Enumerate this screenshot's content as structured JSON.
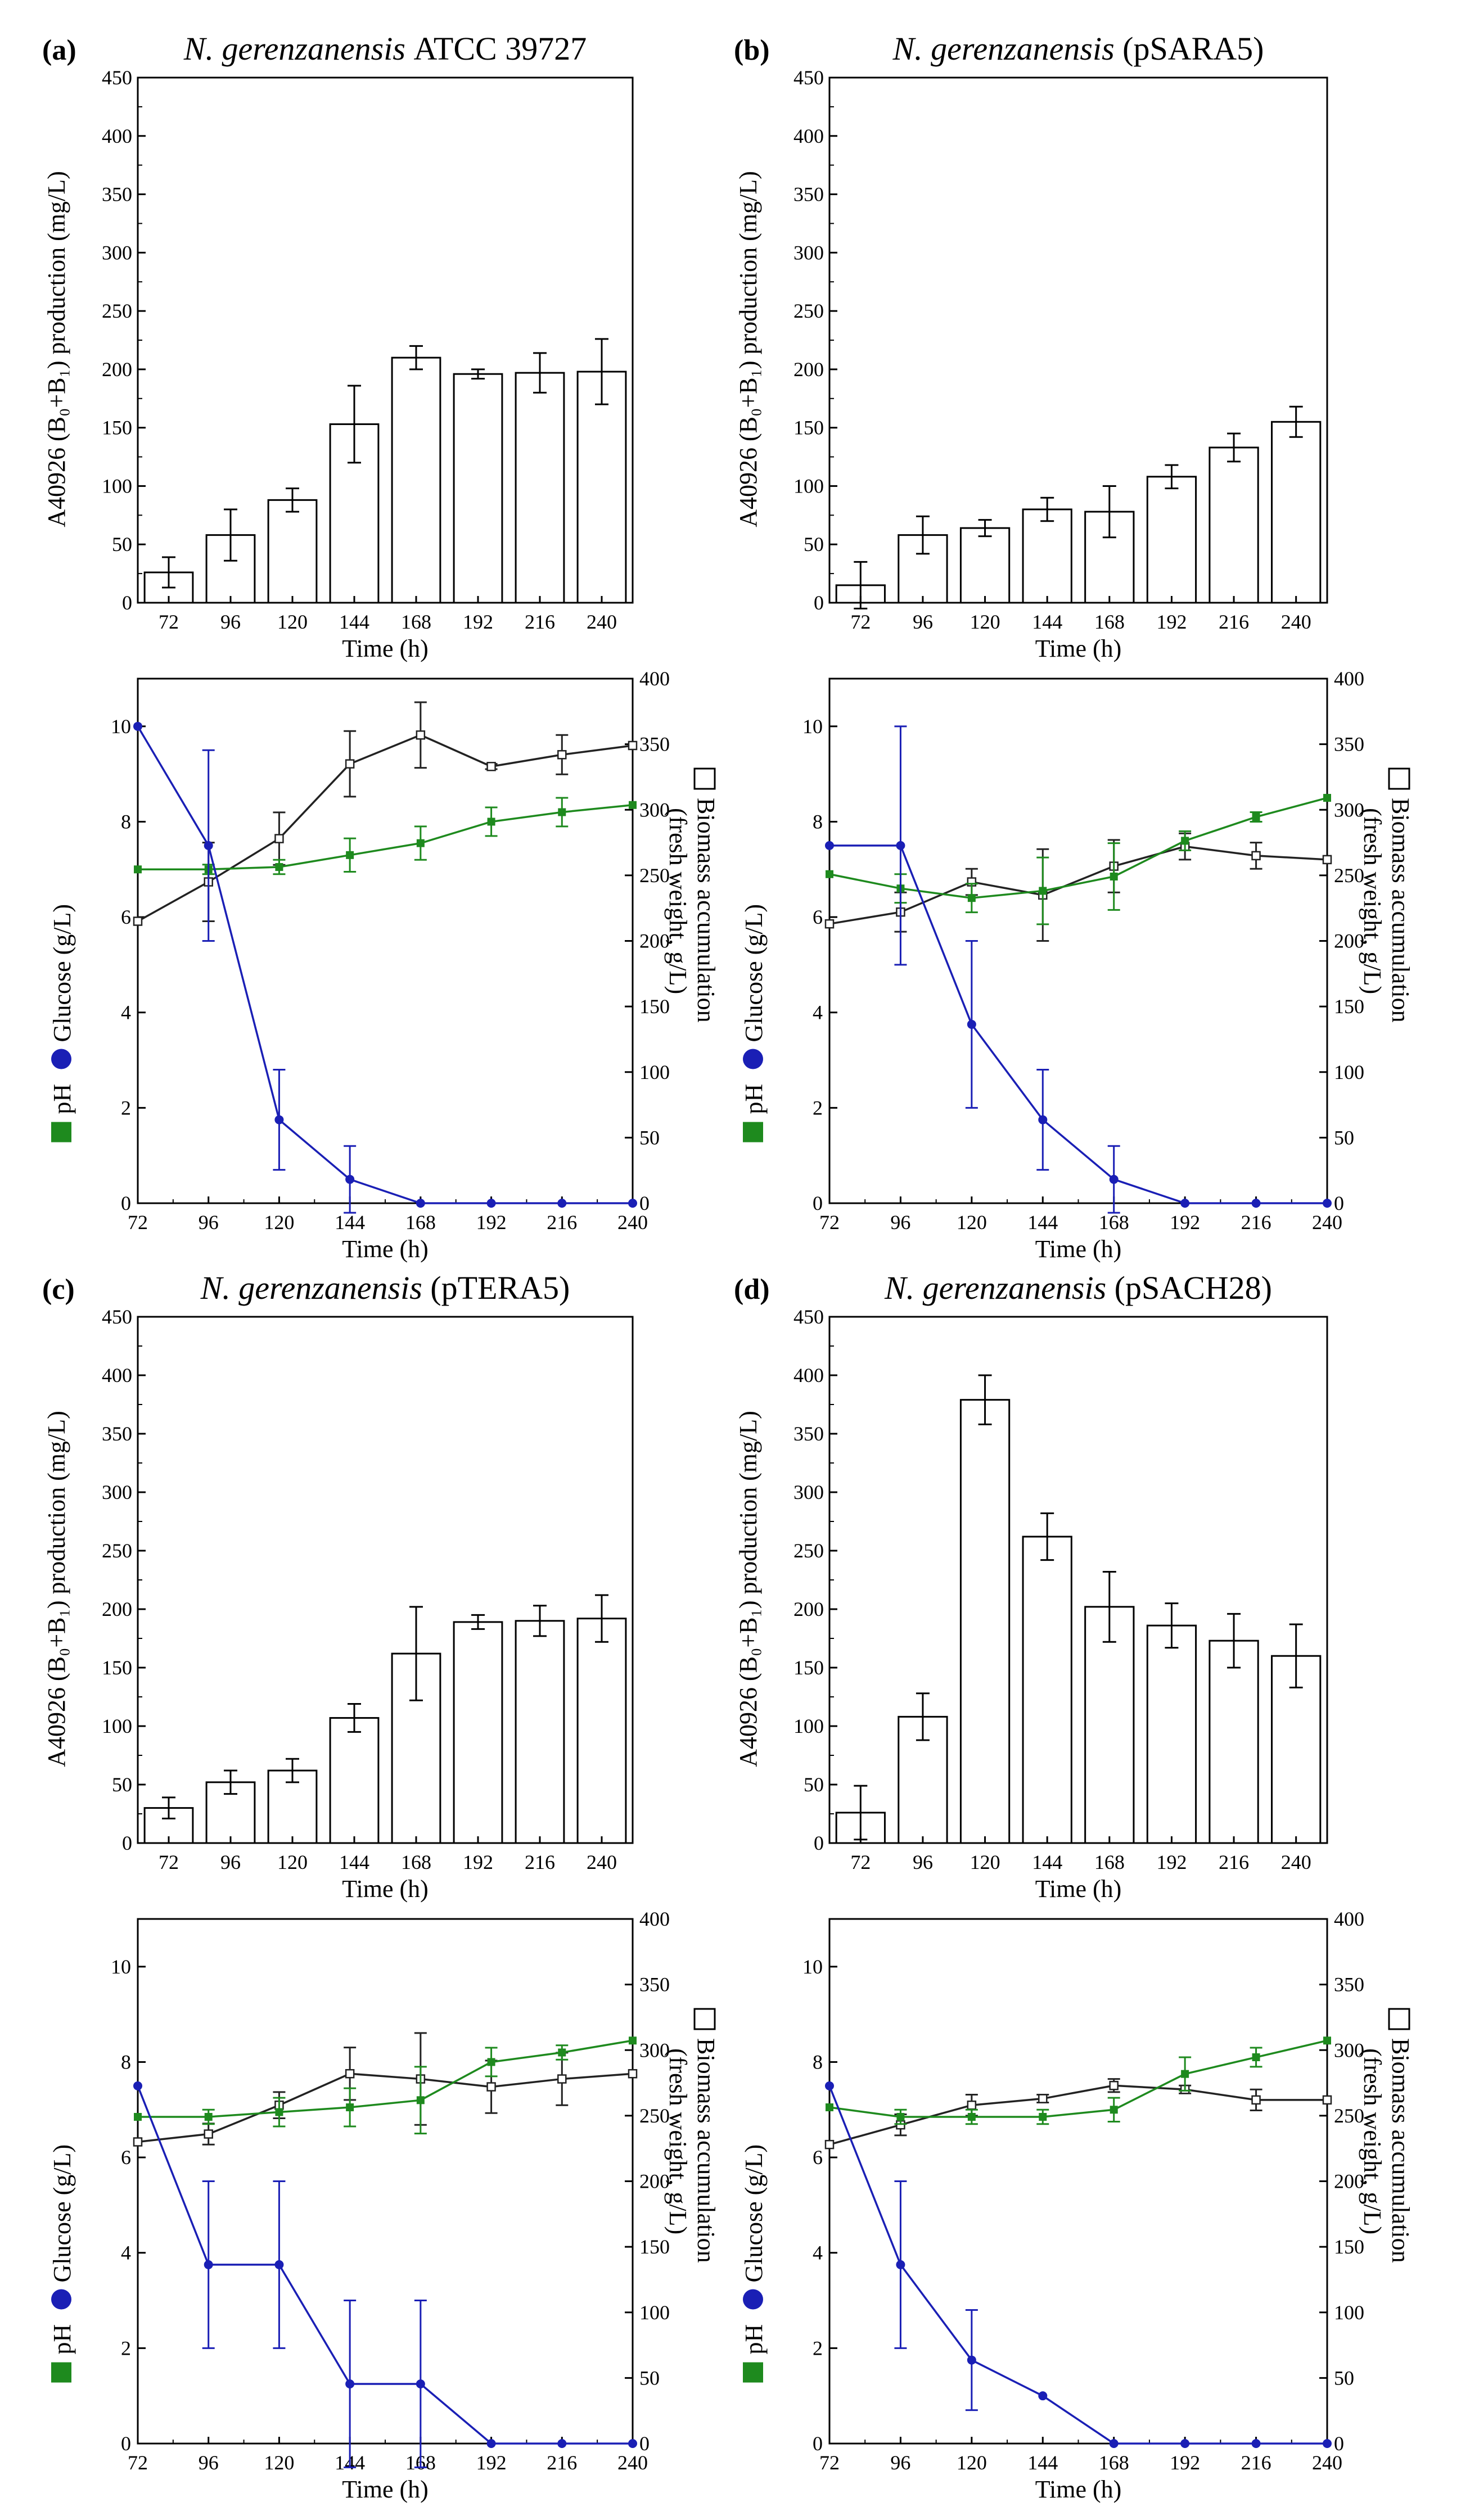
{
  "colors": {
    "ph": "#1e8a1e",
    "glucose": "#1a1fb5",
    "biomass": "#222222",
    "bar_fill": "#ffffff"
  },
  "panels": [
    {
      "letter": "(a)",
      "species": "N. gerenzanensis",
      "strain": "ATCC 39727"
    },
    {
      "letter": "(b)",
      "species": "N. gerenzanensis",
      "strain": "(pSARA5)"
    },
    {
      "letter": "(c)",
      "species": "N. gerenzanensis",
      "strain": "(pTERA5)"
    },
    {
      "letter": "(d)",
      "species": "N. gerenzanensis",
      "strain": "(pSACH28)"
    }
  ],
  "axis_text": {
    "time": "Time (h)",
    "production": "A40926 (B₀+B₁) production (mg/L)",
    "ph": "pH",
    "glucose": "Glucose (g/L)",
    "biomass_1": "Biomass accumulation",
    "biomass_2": "(fresh weight, g/L)"
  },
  "chart_data": [
    {
      "type": "bar",
      "panel": "a",
      "title": "N. gerenzanensis ATCC 39727",
      "xlabel": "Time (h)",
      "ylabel": "A40926 (B₀+B₁) production (mg/L)",
      "categories": [
        "72",
        "96",
        "120",
        "144",
        "168",
        "192",
        "216",
        "240"
      ],
      "values": [
        26,
        58,
        88,
        153,
        210,
        196,
        197,
        198
      ],
      "errors": [
        13,
        22,
        10,
        33,
        10,
        4,
        17,
        28
      ],
      "ylim": [
        0,
        450
      ],
      "yticks": [
        "0",
        "50",
        "100",
        "150",
        "200",
        "250",
        "300",
        "350",
        "400",
        "450"
      ]
    },
    {
      "type": "line",
      "panel": "a",
      "xlabel": "Time (h)",
      "x": [
        72,
        96,
        120,
        144,
        168,
        192,
        216,
        240
      ],
      "xticks": [
        "72",
        "96",
        "120",
        "144",
        "168",
        "192",
        "216",
        "240"
      ],
      "ylim_left": [
        0,
        11
      ],
      "yticks_left": [
        "0",
        "2",
        "4",
        "6",
        "8",
        "10"
      ],
      "ylim_right": [
        0,
        400
      ],
      "yticks_right": [
        "0",
        "50",
        "100",
        "150",
        "200",
        "250",
        "300",
        "350",
        "400"
      ],
      "series": [
        {
          "name": "pH",
          "axis": "left",
          "values": [
            7.0,
            7.0,
            7.05,
            7.3,
            7.55,
            8.0,
            8.2,
            8.35
          ],
          "errors": [
            0,
            0.1,
            0.15,
            0.35,
            0.35,
            0.3,
            0.3,
            0
          ]
        },
        {
          "name": "Glucose",
          "axis": "left",
          "values": [
            10.0,
            7.5,
            1.75,
            0.5,
            0,
            0,
            0,
            0
          ],
          "errors": [
            0,
            2.0,
            1.05,
            0.7,
            0,
            0,
            0,
            0
          ]
        },
        {
          "name": "Biomass accumulation",
          "axis": "right",
          "values": [
            215,
            245,
            278,
            335,
            357,
            333,
            342,
            349
          ],
          "errors": [
            0,
            30,
            20,
            25,
            25,
            2,
            15,
            0
          ]
        }
      ]
    },
    {
      "type": "bar",
      "panel": "b",
      "title": "N. gerenzanensis (pSARA5)",
      "xlabel": "Time (h)",
      "ylabel": "A40926 (B₀+B₁) production (mg/L)",
      "categories": [
        "72",
        "96",
        "120",
        "144",
        "168",
        "192",
        "216",
        "240"
      ],
      "values": [
        15,
        58,
        64,
        80,
        78,
        108,
        133,
        155
      ],
      "errors": [
        20,
        16,
        7,
        10,
        22,
        10,
        12,
        13
      ],
      "ylim": [
        0,
        450
      ],
      "yticks": [
        "0",
        "50",
        "100",
        "150",
        "200",
        "250",
        "300",
        "350",
        "400",
        "450"
      ]
    },
    {
      "type": "line",
      "panel": "b",
      "xlabel": "Time (h)",
      "x": [
        72,
        96,
        120,
        144,
        168,
        192,
        216,
        240
      ],
      "xticks": [
        "72",
        "96",
        "120",
        "144",
        "168",
        "192",
        "216",
        "240"
      ],
      "ylim_left": [
        0,
        11
      ],
      "yticks_left": [
        "0",
        "2",
        "4",
        "6",
        "8",
        "10"
      ],
      "ylim_right": [
        0,
        400
      ],
      "yticks_right": [
        "0",
        "50",
        "100",
        "150",
        "200",
        "250",
        "300",
        "350",
        "400"
      ],
      "series": [
        {
          "name": "pH",
          "axis": "left",
          "values": [
            6.9,
            6.6,
            6.4,
            6.55,
            6.85,
            7.6,
            8.1,
            8.5
          ],
          "errors": [
            0,
            0.3,
            0.3,
            0.7,
            0.7,
            0.2,
            0.1,
            0
          ]
        },
        {
          "name": "Glucose",
          "axis": "left",
          "values": [
            7.5,
            7.5,
            3.75,
            1.75,
            0.5,
            0,
            0,
            0
          ],
          "errors": [
            0,
            2.5,
            1.75,
            1.05,
            0.7,
            0,
            0,
            0
          ]
        },
        {
          "name": "Biomass accumulation",
          "axis": "right",
          "values": [
            213,
            222,
            245,
            235,
            257,
            272,
            265,
            262
          ],
          "errors": [
            0,
            15,
            10,
            35,
            20,
            10,
            10,
            0
          ]
        }
      ]
    },
    {
      "type": "bar",
      "panel": "c",
      "title": "N. gerenzanensis (pTERA5)",
      "xlabel": "Time (h)",
      "ylabel": "A40926 (B₀+B₁) production (mg/L)",
      "categories": [
        "72",
        "96",
        "120",
        "144",
        "168",
        "192",
        "216",
        "240"
      ],
      "values": [
        30,
        52,
        62,
        107,
        162,
        189,
        190,
        192
      ],
      "errors": [
        9,
        10,
        10,
        12,
        40,
        6,
        13,
        20
      ],
      "ylim": [
        0,
        450
      ],
      "yticks": [
        "0",
        "50",
        "100",
        "150",
        "200",
        "250",
        "300",
        "350",
        "400",
        "450"
      ]
    },
    {
      "type": "line",
      "panel": "c",
      "xlabel": "Time (h)",
      "x": [
        72,
        96,
        120,
        144,
        168,
        192,
        216,
        240
      ],
      "xticks": [
        "72",
        "96",
        "120",
        "144",
        "168",
        "192",
        "216",
        "240"
      ],
      "ylim_left": [
        0,
        11
      ],
      "yticks_left": [
        "0",
        "2",
        "4",
        "6",
        "8",
        "10"
      ],
      "ylim_right": [
        0,
        400
      ],
      "yticks_right": [
        "0",
        "50",
        "100",
        "150",
        "200",
        "250",
        "300",
        "350",
        "400"
      ],
      "series": [
        {
          "name": "pH",
          "axis": "left",
          "values": [
            6.85,
            6.85,
            6.95,
            7.05,
            7.2,
            8.0,
            8.2,
            8.45
          ],
          "errors": [
            0,
            0.15,
            0.3,
            0.4,
            0.7,
            0.3,
            0.15,
            0
          ]
        },
        {
          "name": "Glucose",
          "axis": "left",
          "values": [
            7.5,
            3.75,
            3.75,
            1.25,
            1.25,
            0,
            0,
            0
          ],
          "errors": [
            0,
            1.75,
            1.75,
            1.75,
            1.75,
            0,
            0,
            0
          ]
        },
        {
          "name": "Biomass accumulation",
          "axis": "right",
          "values": [
            230,
            236,
            258,
            282,
            278,
            272,
            278,
            282
          ],
          "errors": [
            0,
            8,
            10,
            20,
            35,
            20,
            20,
            0
          ]
        }
      ]
    },
    {
      "type": "bar",
      "panel": "d",
      "title": "N. gerenzanensis (pSACH28)",
      "xlabel": "Time (h)",
      "ylabel": "A40926 (B₀+B₁) production (mg/L)",
      "categories": [
        "72",
        "96",
        "120",
        "144",
        "168",
        "192",
        "216",
        "240"
      ],
      "values": [
        26,
        108,
        379,
        262,
        202,
        186,
        173,
        160
      ],
      "errors": [
        23,
        20,
        21,
        20,
        30,
        19,
        23,
        27
      ],
      "ylim": [
        0,
        450
      ],
      "yticks": [
        "0",
        "50",
        "100",
        "150",
        "200",
        "250",
        "300",
        "350",
        "400",
        "450"
      ]
    },
    {
      "type": "line",
      "panel": "d",
      "xlabel": "Time (h)",
      "x": [
        72,
        96,
        120,
        144,
        168,
        192,
        216,
        240
      ],
      "xticks": [
        "72",
        "96",
        "120",
        "144",
        "168",
        "192",
        "216",
        "240"
      ],
      "ylim_left": [
        0,
        11
      ],
      "yticks_left": [
        "0",
        "2",
        "4",
        "6",
        "8",
        "10"
      ],
      "ylim_right": [
        0,
        400
      ],
      "yticks_right": [
        "0",
        "50",
        "100",
        "150",
        "200",
        "250",
        "300",
        "350",
        "400"
      ],
      "series": [
        {
          "name": "pH",
          "axis": "left",
          "values": [
            7.05,
            6.85,
            6.85,
            6.85,
            7.0,
            7.75,
            8.1,
            8.45
          ],
          "errors": [
            0,
            0.15,
            0.15,
            0.15,
            0.25,
            0.35,
            0.2,
            0
          ]
        },
        {
          "name": "Glucose",
          "axis": "left",
          "values": [
            7.5,
            3.75,
            1.75,
            1.0,
            0,
            0,
            0,
            0
          ],
          "errors": [
            0,
            1.75,
            1.05,
            0,
            0,
            0,
            0,
            0
          ]
        },
        {
          "name": "Biomass accumulation",
          "axis": "right",
          "values": [
            228,
            243,
            258,
            263,
            273,
            270,
            262,
            262
          ],
          "errors": [
            0,
            8,
            8,
            3,
            5,
            3,
            8,
            0
          ]
        }
      ]
    }
  ]
}
